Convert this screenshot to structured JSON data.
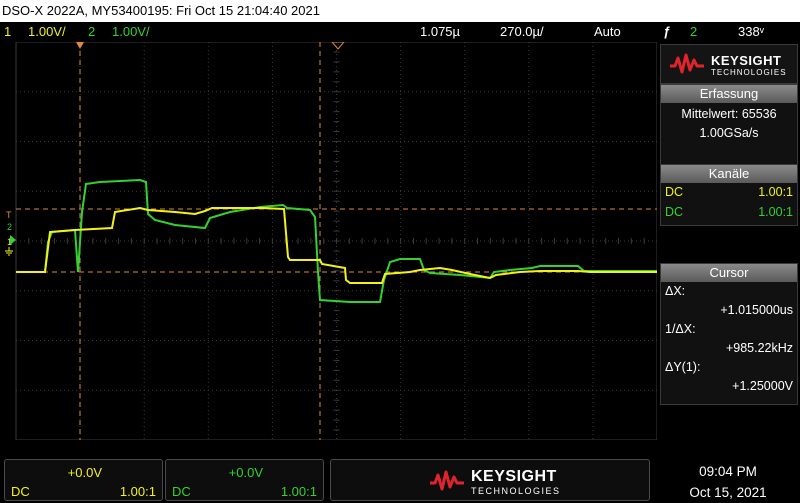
{
  "title": "DSO-X 2022A, MY53400195: Fri Oct 15 21:04:40 2021",
  "status": {
    "ch1_num": "1",
    "ch1_scale": "1.00V/",
    "ch2_num": "2",
    "ch2_scale": "1.00V/",
    "time_pos": "1.075µ",
    "time_scale": "270.0µ/",
    "trigger_mode": "Auto",
    "trigger_symbol": "ƒ",
    "trigger_source": "2",
    "trigger_level": "338ᵛ"
  },
  "brand": {
    "name": "KEYSIGHT",
    "sub": "TECHNOLOGIES"
  },
  "acquisition": {
    "header": "Erfassung",
    "line1": "Mittelwert: 65536",
    "line2": "1.00GSa/s"
  },
  "channels": {
    "header": "Kanäle",
    "rows": [
      {
        "coupling": "DC",
        "probe": "1.00:1"
      },
      {
        "coupling": "DC",
        "probe": "1.00:1"
      }
    ]
  },
  "cursor": {
    "header": "Cursor",
    "dx_label": "ΔX:",
    "dx_value": "+1.015000us",
    "inv_label": "1/ΔX:",
    "inv_value": "+985.22kHz",
    "dy_label": "ΔY(1):",
    "dy_value": "+1.25000V"
  },
  "bottom": {
    "ch1": {
      "offset": "+0.0V",
      "coupling": "DC",
      "probe": "1.00:1"
    },
    "ch2": {
      "offset": "+0.0V",
      "coupling": "DC",
      "probe": "1.00:1"
    },
    "time": "09:04 PM",
    "date": "Oct 15, 2021"
  },
  "trace_markers": {
    "trigger_level_label": "T",
    "ch2_label": "2",
    "ch1_label": "1"
  },
  "colors": {
    "ch1": "#f2f21a",
    "ch2": "#35d22f",
    "cursor": "#e08a3a",
    "grid": "#3a3a3a"
  }
}
